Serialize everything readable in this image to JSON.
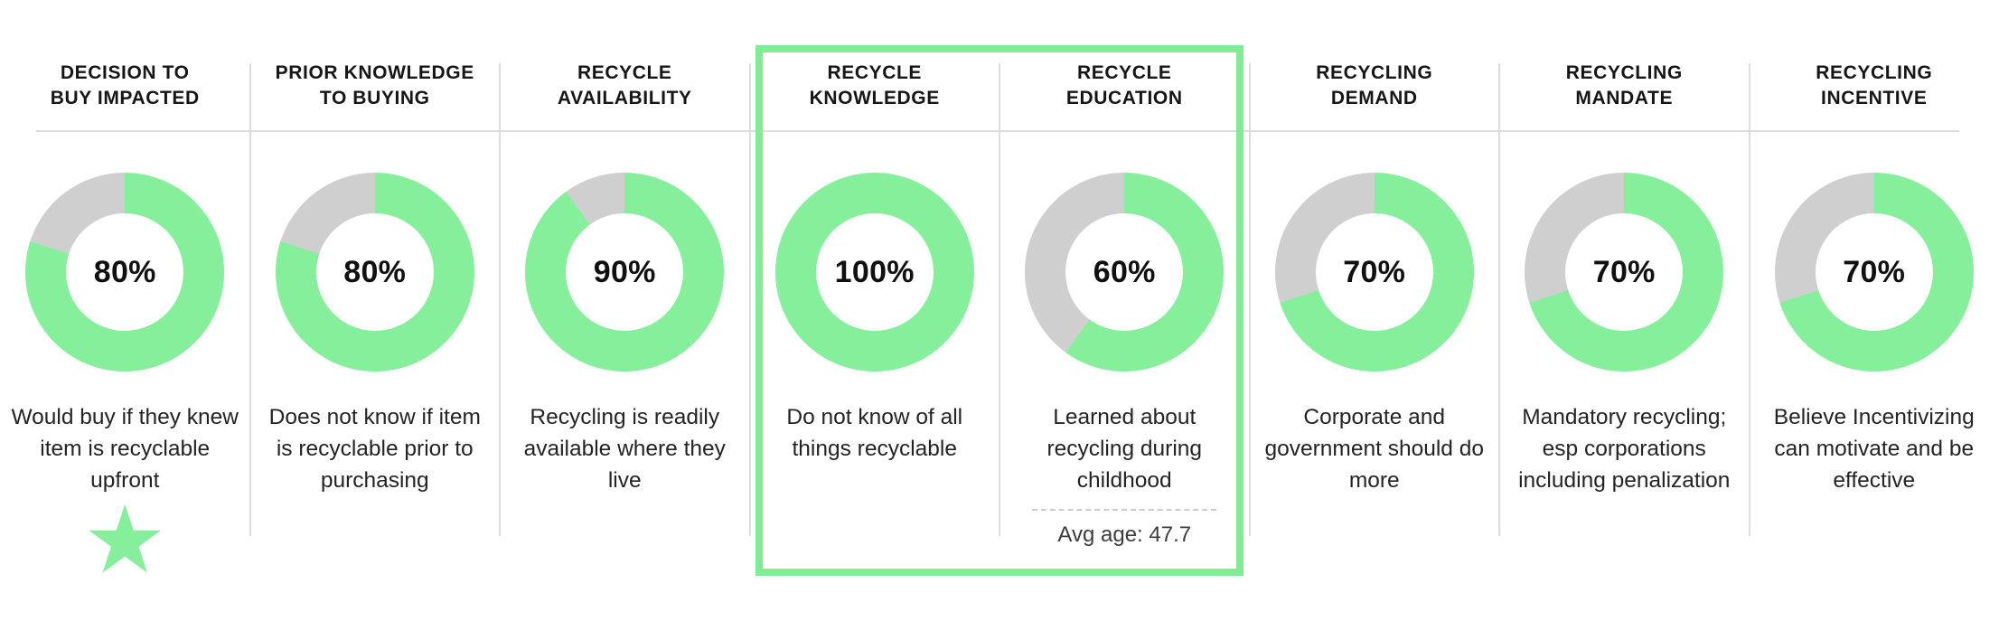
{
  "colors": {
    "fill_green": "#85ef9b",
    "remainder_gray": "#cfcfcf",
    "divider_gray": "#dcdcdc",
    "highlight_border_green": "#80ed95",
    "text_dark": "#1b1b1b"
  },
  "icons": {
    "star_glyph": "★"
  },
  "chart_data": {
    "type": "pie",
    "variant": "donut-small-multiples",
    "start_angle": "12-oclock",
    "direction": "clockwise",
    "filled_color": "#85ef9b",
    "remainder_color": "#cfcfcf",
    "legend_position": "none",
    "grid": "8 columns separated by light gray rules",
    "categories": [
      "DECISION TO BUY IMPACTED",
      "PRIOR KNOWLEDGE TO BUYING",
      "RECYCLE AVAILABILITY",
      "RECYCLE KNOWLEDGE",
      "RECYCLE EDUCATION",
      "RECYCLING DEMAND",
      "RECYCLING MANDATE",
      "RECYCLING INCENTIVE"
    ],
    "values": [
      80,
      80,
      90,
      100,
      60,
      70,
      70,
      70
    ],
    "columns": [
      {
        "header_line1": "DECISION TO",
        "header_line2": "BUY IMPACTED",
        "percent": 80,
        "percent_label": "80%",
        "caption": "Would buy if they knew item is recyclable upfront",
        "starred": true,
        "highlighted": false,
        "footnote": ""
      },
      {
        "header_line1": "PRIOR KNOWLEDGE",
        "header_line2": "TO BUYING",
        "percent": 80,
        "percent_label": "80%",
        "caption": "Does not know if item is recyclable prior to purchasing",
        "starred": false,
        "highlighted": false,
        "footnote": ""
      },
      {
        "header_line1": "RECYCLE",
        "header_line2": "AVAILABILITY",
        "percent": 90,
        "percent_label": "90%",
        "caption": "Recycling is readily available where they live",
        "starred": false,
        "highlighted": false,
        "footnote": ""
      },
      {
        "header_line1": "RECYCLE",
        "header_line2": "KNOWLEDGE",
        "percent": 100,
        "percent_label": "100%",
        "caption": "Do not know of all things recyclable",
        "starred": false,
        "highlighted": true,
        "footnote": ""
      },
      {
        "header_line1": "RECYCLE",
        "header_line2": "EDUCATION",
        "percent": 60,
        "percent_label": "60%",
        "caption": "Learned about recycling during childhood",
        "starred": false,
        "highlighted": true,
        "footnote": "Avg age: 47.7"
      },
      {
        "header_line1": "RECYCLING",
        "header_line2": "DEMAND",
        "percent": 70,
        "percent_label": "70%",
        "caption": "Corporate and government should do more",
        "starred": false,
        "highlighted": false,
        "footnote": ""
      },
      {
        "header_line1": "RECYCLING",
        "header_line2": "MANDATE",
        "percent": 70,
        "percent_label": "70%",
        "caption": "Mandatory recycling; esp corporations including penalization",
        "starred": false,
        "highlighted": false,
        "footnote": ""
      },
      {
        "header_line1": "RECYCLING",
        "header_line2": "INCENTIVE",
        "percent": 70,
        "percent_label": "70%",
        "caption": "Believe Incentivizing can motivate and be effective",
        "starred": false,
        "highlighted": false,
        "footnote": ""
      }
    ],
    "highlight": {
      "columns": [
        "RECYCLE KNOWLEDGE",
        "RECYCLE EDUCATION"
      ],
      "border_color": "#80ed95"
    }
  }
}
